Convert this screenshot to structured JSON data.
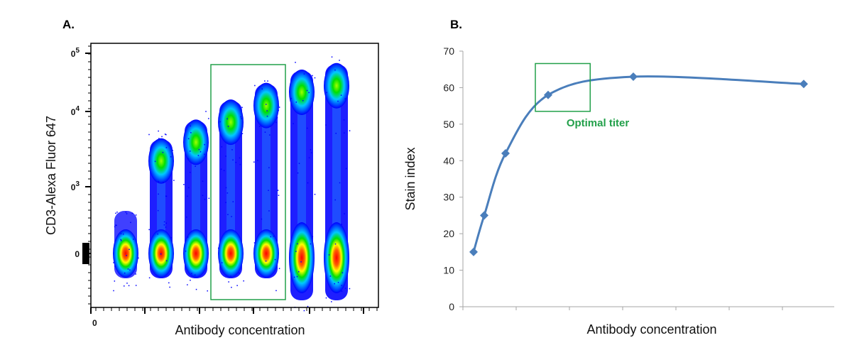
{
  "panels": {
    "a_label": "A.",
    "b_label": "B."
  },
  "chart_data": [
    {
      "type": "scatter",
      "subtype": "flow cytometry pseudocolor density plot",
      "panel": "A.",
      "xlabel": "Antibody concentration",
      "ylabel": "CD3-Alexa Fluor 647",
      "x_tick_labels": [
        "0"
      ],
      "y_tick_labels": [
        {
          "base": "0",
          "sup": "5"
        },
        {
          "base": "0",
          "sup": "4"
        },
        {
          "base": "0",
          "sup": "3"
        },
        {
          "base": "0",
          "sup": ""
        }
      ],
      "y_scale": "log (biexponential)",
      "populations": [
        {
          "negative_peak": 0,
          "positive_peak": null
        },
        {
          "negative_peak": 0,
          "positive_peak": 2200
        },
        {
          "negative_peak": 0,
          "positive_peak": 3900
        },
        {
          "negative_peak": 0,
          "positive_peak": 7200
        },
        {
          "negative_peak": 0,
          "positive_peak": 12000
        },
        {
          "negative_peak": 0,
          "positive_peak": 18000
        },
        {
          "negative_peak": 0,
          "positive_peak": 22000
        }
      ],
      "gate": {
        "populations": [
          4,
          5
        ],
        "color": "#22a04a"
      },
      "colors": [
        "#0000ff",
        "#00c8ff",
        "#00e000",
        "#ffff00",
        "#ff0000"
      ]
    },
    {
      "type": "line",
      "panel": "B.",
      "xlabel": "Antibody concentration",
      "ylabel": "Stain index",
      "x": [
        0.2,
        0.4,
        0.8,
        1.6,
        3.2,
        6.4
      ],
      "values": [
        15,
        25,
        42,
        58,
        63,
        61
      ],
      "xlim": [
        0,
        7
      ],
      "ylim": [
        0,
        70
      ],
      "y_ticks": [
        0,
        10,
        20,
        30,
        40,
        50,
        60,
        70
      ],
      "x_tick_labels": [],
      "line_color": "#4a7ebb",
      "marker": "diamond",
      "smooth": true,
      "grid": false,
      "annotation": {
        "text": "Optimal titer",
        "color": "#22a04a",
        "x_range": [
          1.36,
          2.39
        ],
        "y_range": [
          53.5,
          66.6
        ]
      }
    }
  ]
}
